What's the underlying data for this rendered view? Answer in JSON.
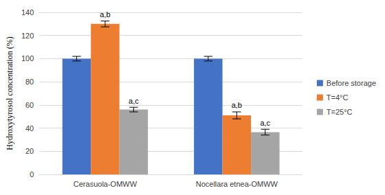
{
  "chart_data": {
    "type": "bar",
    "y_label": "Hydroxytyrosol concentration (%)",
    "categories": [
      "Cerasuola-OMWW",
      "Nocellara etnea-OMWW"
    ],
    "series": [
      {
        "name": "Before storage",
        "color": "#4472c4",
        "values": [
          100,
          100
        ],
        "errors": [
          2,
          2
        ]
      },
      {
        "name": "T=4°C",
        "color": "#ed7d31",
        "values": [
          130,
          51
        ],
        "errors": [
          2.5,
          3
        ],
        "annotations": [
          "a,b",
          "a,b"
        ]
      },
      {
        "name": "T=25°C",
        "color": "#a5a5a5",
        "values": [
          56,
          36.5
        ],
        "errors": [
          2,
          2.5
        ],
        "annotations": [
          "a,c",
          "a,c"
        ]
      }
    ],
    "ylim": [
      0,
      140
    ],
    "yticks": [
      0,
      20,
      40,
      60,
      80,
      100,
      120,
      140
    ],
    "grid": true,
    "legend": "right",
    "data_labels": false
  }
}
